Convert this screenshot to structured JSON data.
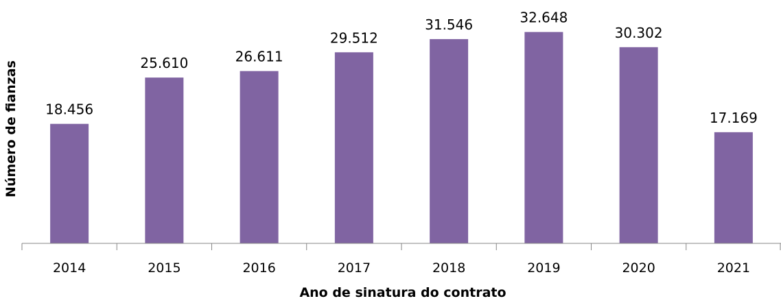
{
  "chart_data": {
    "type": "bar",
    "categories": [
      "2014",
      "2015",
      "2016",
      "2017",
      "2018",
      "2019",
      "2020",
      "2021"
    ],
    "values": [
      18456,
      25610,
      26611,
      29512,
      31546,
      32648,
      30302,
      17169
    ],
    "value_labels": [
      "18.456",
      "25.610",
      "26.611",
      "29.512",
      "31.546",
      "32.648",
      "30.302",
      "17.169"
    ],
    "title": "",
    "xlabel": "Ano de sinatura do contrato",
    "ylabel": "Número de  fianzas",
    "ylim": [
      0,
      36000
    ],
    "grid": false,
    "legend": "none",
    "bar_color": "#8064a2"
  }
}
